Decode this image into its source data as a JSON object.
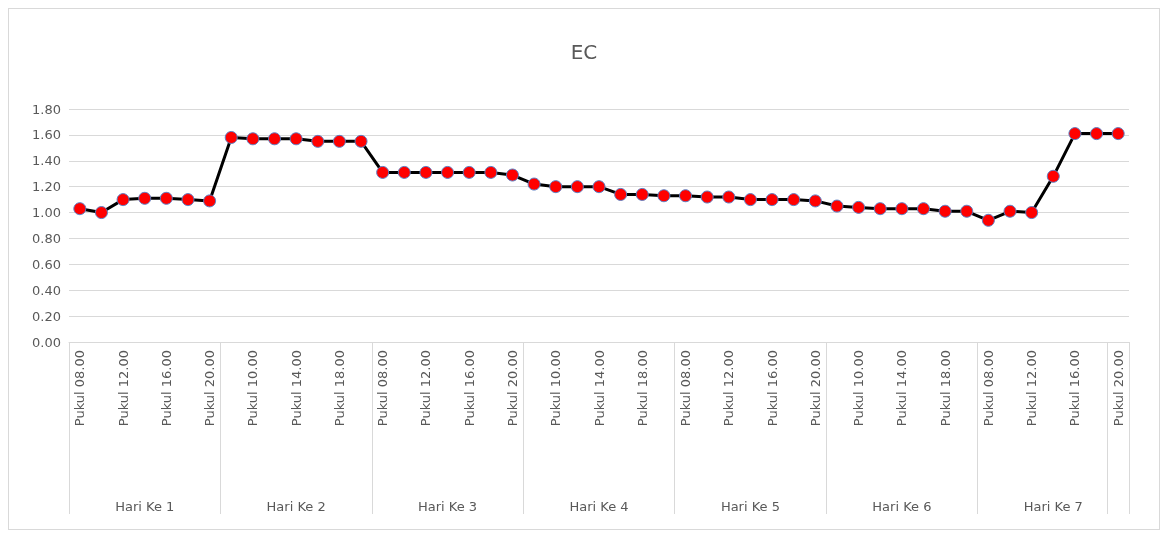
{
  "chart_data": {
    "type": "line",
    "title": "EC",
    "categories": [
      "Pukul 08.00",
      null,
      "Pukul 12.00",
      null,
      "Pukul 16.00",
      null,
      "Pukul 20.00",
      null,
      "Pukul 10.00",
      null,
      "Pukul 14.00",
      null,
      "Pukul 18.00",
      null,
      "Pukul 08.00",
      null,
      "Pukul 12.00",
      null,
      "Pukul 16.00",
      null,
      "Pukul 20.00",
      null,
      "Pukul 10.00",
      null,
      "Pukul 14.00",
      null,
      "Pukul 18.00",
      null,
      "Pukul 08.00",
      null,
      "Pukul 12.00",
      null,
      "Pukul 16.00",
      null,
      "Pukul 20.00",
      null,
      "Pukul 10.00",
      null,
      "Pukul 14.00",
      null,
      "Pukul 18.00",
      null,
      "Pukul 08.00",
      null,
      "Pukul 12.00",
      null,
      "Pukul 16.00",
      null,
      "Pukul 20.00"
    ],
    "annotations": [
      "Hari Ke 1",
      "Hari Ke 2",
      "Hari Ke 3",
      "Hari Ke 4",
      "Hari Ke 5",
      "Hari Ke 6",
      "Hari Ke 7"
    ],
    "series": [
      {
        "color": "#000000",
        "values": [
          1.03,
          1.0,
          1.1,
          1.11,
          1.11,
          1.1,
          1.09,
          1.58,
          1.57,
          1.57,
          1.57,
          1.55,
          1.55,
          1.55,
          1.31,
          1.31,
          1.31,
          1.31,
          1.31,
          1.31,
          1.29,
          1.22,
          1.2,
          1.2,
          1.2,
          1.14,
          1.14,
          1.13,
          1.13,
          1.12,
          1.12,
          1.1,
          1.1,
          1.1,
          1.09,
          1.05,
          1.04,
          1.03,
          1.03,
          1.03,
          1.01,
          1.01,
          0.94,
          1.01,
          1.0,
          1.28,
          1.61,
          1.61,
          1.61
        ]
      }
    ],
    "ylim": [
      0,
      1.8
    ],
    "yticks": [
      {
        "value": 0,
        "label": "0.00"
      },
      {
        "value": 0.2,
        "label": "0.20"
      },
      {
        "value": 0.4,
        "label": "0.40"
      },
      {
        "value": 0.6,
        "label": "0.60"
      },
      {
        "value": 0.8,
        "label": "0.80"
      },
      {
        "value": 1,
        "label": "1.00"
      },
      {
        "value": 1.2,
        "label": "1.20"
      },
      {
        "value": 1.4,
        "label": "1.40"
      },
      {
        "value": 1.6,
        "label": "1.60"
      },
      {
        "value": 1.8,
        "label": "1.80"
      }
    ],
    "grid": "y",
    "marker": "circle",
    "line_style": "solid"
  }
}
